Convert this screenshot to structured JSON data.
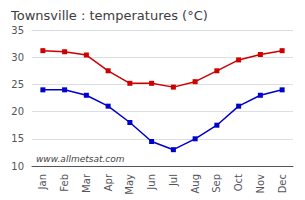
{
  "chart_data": {
    "type": "line",
    "title": "Townsville : temperatures (°C)",
    "categories": [
      "Jan",
      "Feb",
      "Mar",
      "Apr",
      "May",
      "Jun",
      "Jul",
      "Aug",
      "Sep",
      "Oct",
      "Nov",
      "Dec"
    ],
    "series": [
      {
        "color": "#cc0000",
        "values": [
          31.2,
          31.0,
          30.4,
          27.5,
          25.2,
          25.2,
          24.5,
          25.5,
          27.5,
          29.5,
          30.5,
          31.2
        ]
      },
      {
        "color": "#0000cc",
        "values": [
          24.0,
          24.0,
          23.0,
          21.0,
          18.0,
          14.5,
          13.0,
          15.0,
          17.5,
          21.0,
          23.0,
          24.0
        ]
      }
    ],
    "ylim": [
      10,
      35
    ],
    "yticks": [
      10,
      15,
      20,
      25,
      30,
      35
    ],
    "grid": true,
    "marker": "square",
    "annotations": [
      "www.allmetsat.com"
    ]
  }
}
